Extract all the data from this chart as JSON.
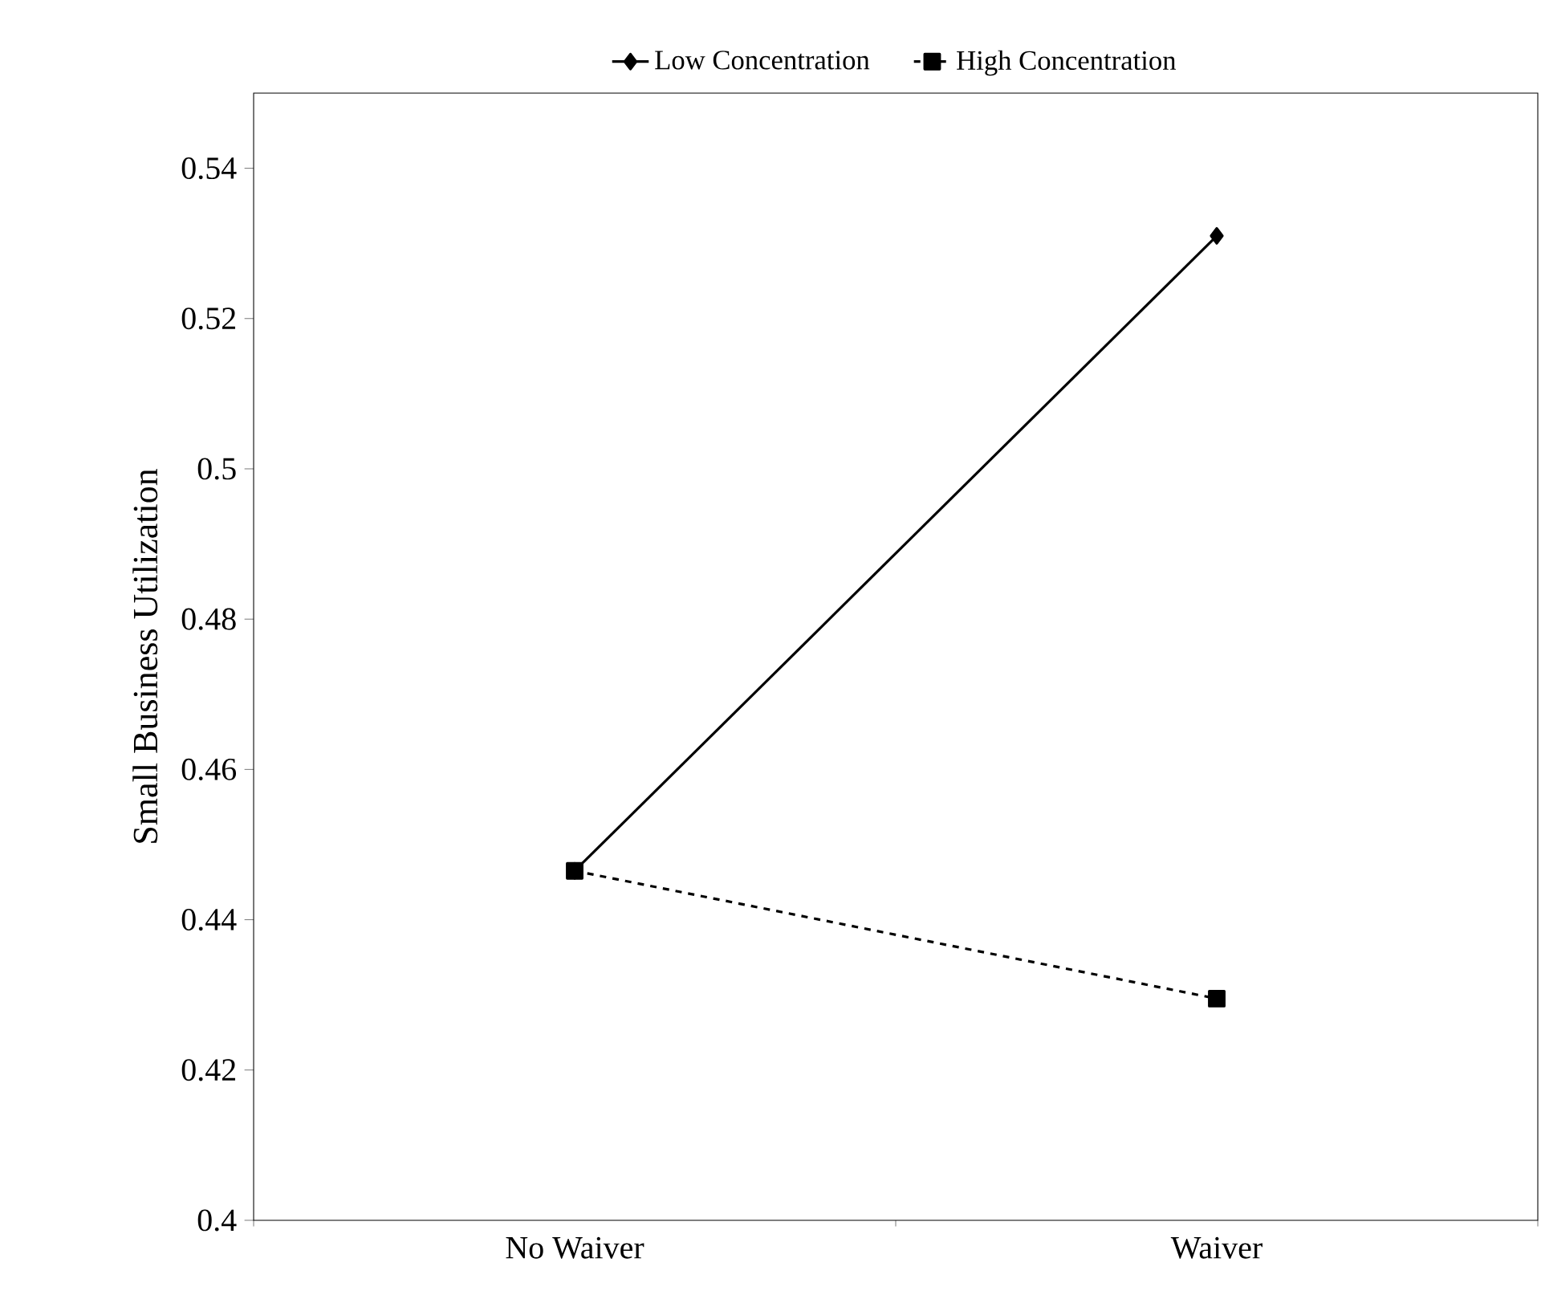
{
  "chart_data": {
    "type": "line",
    "categories": [
      "No Waiver",
      "Waiver"
    ],
    "ylabel": "Small Business Utilization",
    "ylim": [
      0.4,
      0.55
    ],
    "yticks": [
      0.4,
      0.42,
      0.44,
      0.46,
      0.48,
      0.5,
      0.52,
      0.54
    ],
    "legend": "top",
    "grid": false,
    "series": [
      {
        "name": "Low Concentration",
        "color": "#000000",
        "values": [
          0.4465,
          0.531
        ],
        "marker": "diamond",
        "line_style": "solid"
      },
      {
        "name": "High Concentration",
        "color": "#000000",
        "values": [
          0.4465,
          0.4295
        ],
        "marker": "square",
        "line_style": "dashed"
      }
    ]
  }
}
